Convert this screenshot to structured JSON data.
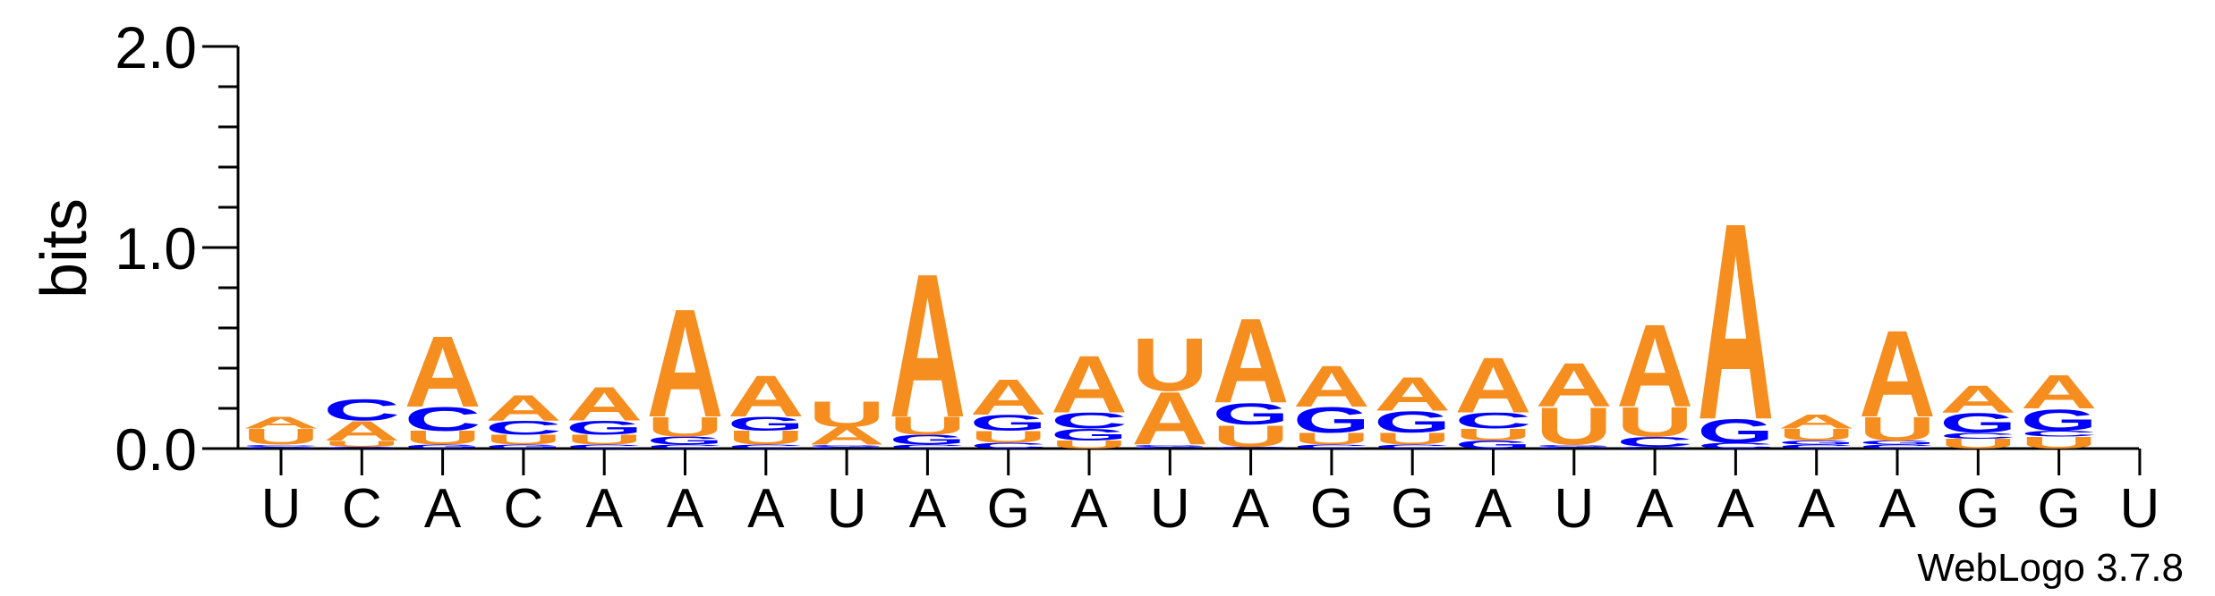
{
  "chart_data": {
    "type": "sequence-logo",
    "ylabel": "bits",
    "ylim": [
      0,
      2.0
    ],
    "yticks": [
      {
        "value": 0.0,
        "label": "0.0"
      },
      {
        "value": 1.0,
        "label": "1.0"
      },
      {
        "value": 2.0,
        "label": "2.0"
      }
    ],
    "colors": {
      "A": "#f68d1f",
      "U": "#f68d1f",
      "C": "#0000ff",
      "G": "#0000ff"
    },
    "positions": [
      {
        "label": "U",
        "letters": [
          {
            "base": "G",
            "bits": 0.01
          },
          {
            "base": "C",
            "bits": 0.01
          },
          {
            "base": "U",
            "bits": 0.08
          },
          {
            "base": "A",
            "bits": 0.06
          }
        ]
      },
      {
        "label": "C",
        "letters": [
          {
            "base": "G",
            "bits": 0.01
          },
          {
            "base": "U",
            "bits": 0.03
          },
          {
            "base": "A",
            "bits": 0.1
          },
          {
            "base": "C",
            "bits": 0.11
          }
        ]
      },
      {
        "label": "A",
        "letters": [
          {
            "base": "G",
            "bits": 0.02
          },
          {
            "base": "U",
            "bits": 0.07
          },
          {
            "base": "C",
            "bits": 0.12
          },
          {
            "base": "A",
            "bits": 0.36
          }
        ]
      },
      {
        "label": "C",
        "letters": [
          {
            "base": "G",
            "bits": 0.02
          },
          {
            "base": "U",
            "bits": 0.05
          },
          {
            "base": "C",
            "bits": 0.07
          },
          {
            "base": "A",
            "bits": 0.13
          }
        ]
      },
      {
        "label": "A",
        "letters": [
          {
            "base": "C",
            "bits": 0.02
          },
          {
            "base": "U",
            "bits": 0.05
          },
          {
            "base": "G",
            "bits": 0.07
          },
          {
            "base": "A",
            "bits": 0.17
          }
        ]
      },
      {
        "label": "A",
        "letters": [
          {
            "base": "C",
            "bits": 0.02
          },
          {
            "base": "G",
            "bits": 0.04
          },
          {
            "base": "U",
            "bits": 0.1
          },
          {
            "base": "A",
            "bits": 0.55
          }
        ]
      },
      {
        "label": "A",
        "letters": [
          {
            "base": "C",
            "bits": 0.02
          },
          {
            "base": "U",
            "bits": 0.07
          },
          {
            "base": "G",
            "bits": 0.07
          },
          {
            "base": "A",
            "bits": 0.21
          }
        ]
      },
      {
        "label": "U",
        "letters": [
          {
            "base": "C",
            "bits": 0.01
          },
          {
            "base": "G",
            "bits": 0.01
          },
          {
            "base": "A",
            "bits": 0.09
          },
          {
            "base": "U",
            "bits": 0.13
          }
        ]
      },
      {
        "label": "A",
        "letters": [
          {
            "base": "C",
            "bits": 0.02
          },
          {
            "base": "G",
            "bits": 0.05
          },
          {
            "base": "U",
            "bits": 0.09
          },
          {
            "base": "A",
            "bits": 0.73
          }
        ]
      },
      {
        "label": "G",
        "letters": [
          {
            "base": "C",
            "bits": 0.03
          },
          {
            "base": "U",
            "bits": 0.06
          },
          {
            "base": "G",
            "bits": 0.08
          },
          {
            "base": "A",
            "bits": 0.18
          }
        ]
      },
      {
        "label": "A",
        "letters": [
          {
            "base": "U",
            "bits": 0.04
          },
          {
            "base": "G",
            "bits": 0.06
          },
          {
            "base": "C",
            "bits": 0.08
          },
          {
            "base": "A",
            "bits": 0.29
          }
        ]
      },
      {
        "label": "U",
        "letters": [
          {
            "base": "C",
            "bits": 0.01
          },
          {
            "base": "G",
            "bits": 0.01
          },
          {
            "base": "A",
            "bits": 0.27
          },
          {
            "base": "U",
            "bits": 0.27
          }
        ]
      },
      {
        "label": "A",
        "letters": [
          {
            "base": "C",
            "bits": 0.01
          },
          {
            "base": "U",
            "bits": 0.11
          },
          {
            "base": "G",
            "bits": 0.11
          },
          {
            "base": "A",
            "bits": 0.43
          }
        ]
      },
      {
        "label": "G",
        "letters": [
          {
            "base": "C",
            "bits": 0.02
          },
          {
            "base": "U",
            "bits": 0.06
          },
          {
            "base": "G",
            "bits": 0.13
          },
          {
            "base": "A",
            "bits": 0.21
          }
        ]
      },
      {
        "label": "G",
        "letters": [
          {
            "base": "C",
            "bits": 0.02
          },
          {
            "base": "U",
            "bits": 0.06
          },
          {
            "base": "G",
            "bits": 0.11
          },
          {
            "base": "A",
            "bits": 0.17
          }
        ]
      },
      {
        "label": "A",
        "letters": [
          {
            "base": "G",
            "bits": 0.04
          },
          {
            "base": "U",
            "bits": 0.06
          },
          {
            "base": "C",
            "bits": 0.08
          },
          {
            "base": "A",
            "bits": 0.28
          }
        ]
      },
      {
        "label": "U",
        "letters": [
          {
            "base": "C",
            "bits": 0.01
          },
          {
            "base": "G",
            "bits": 0.01
          },
          {
            "base": "U",
            "bits": 0.19
          },
          {
            "base": "A",
            "bits": 0.22
          }
        ]
      },
      {
        "label": "A",
        "letters": [
          {
            "base": "G",
            "bits": 0.01
          },
          {
            "base": "C",
            "bits": 0.05
          },
          {
            "base": "U",
            "bits": 0.15
          },
          {
            "base": "A",
            "bits": 0.42
          }
        ]
      },
      {
        "label": "A",
        "letters": [
          {
            "base": "C",
            "bits": 0.03
          },
          {
            "base": "G",
            "bits": 0.12
          },
          {
            "base": "A",
            "bits": 1.0
          }
        ]
      },
      {
        "label": "A",
        "letters": [
          {
            "base": "C",
            "bits": 0.02
          },
          {
            "base": "G",
            "bits": 0.02
          },
          {
            "base": "U",
            "bits": 0.06
          },
          {
            "base": "A",
            "bits": 0.07
          }
        ]
      },
      {
        "label": "A",
        "letters": [
          {
            "base": "C",
            "bits": 0.02
          },
          {
            "base": "G",
            "bits": 0.02
          },
          {
            "base": "U",
            "bits": 0.12
          },
          {
            "base": "A",
            "bits": 0.44
          }
        ]
      },
      {
        "label": "G",
        "letters": [
          {
            "base": "U",
            "bits": 0.05
          },
          {
            "base": "C",
            "bits": 0.03
          },
          {
            "base": "G",
            "bits": 0.1
          },
          {
            "base": "A",
            "bits": 0.14
          }
        ]
      },
      {
        "label": "G",
        "letters": [
          {
            "base": "U",
            "bits": 0.06
          },
          {
            "base": "C",
            "bits": 0.03
          },
          {
            "base": "G",
            "bits": 0.11
          },
          {
            "base": "A",
            "bits": 0.17
          }
        ]
      },
      {
        "label": "U",
        "letters": []
      }
    ]
  },
  "footer": {
    "credit": "WebLogo 3.7.8"
  }
}
